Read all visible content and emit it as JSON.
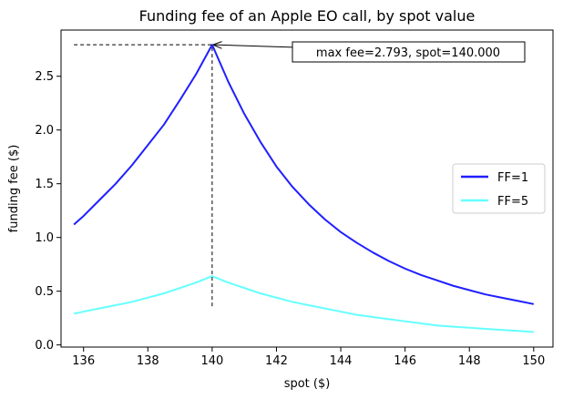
{
  "chart_data": {
    "type": "line",
    "title": "Funding fee of an Apple EO call, by spot value",
    "xlabel": "spot ($)",
    "ylabel": "funding fee ($)",
    "xlim": [
      135.3,
      150.6
    ],
    "ylim": [
      -0.02,
      2.93
    ],
    "xticks": [
      136,
      138,
      140,
      142,
      144,
      146,
      148,
      150
    ],
    "yticks": [
      0.0,
      0.5,
      1.0,
      1.5,
      2.0,
      2.5
    ],
    "xtick_labels": [
      "136",
      "138",
      "140",
      "142",
      "144",
      "146",
      "148",
      "150"
    ],
    "ytick_labels": [
      "0.0",
      "0.5",
      "1.0",
      "1.5",
      "2.0",
      "2.5"
    ],
    "grid": false,
    "legend_position": "center-right",
    "series": [
      {
        "name": "FF=1",
        "color": "#1f1fff",
        "x": [
          135.7,
          136.0,
          136.5,
          137.0,
          137.5,
          138.0,
          138.5,
          139.0,
          139.5,
          140.0,
          140.5,
          141.0,
          141.5,
          142.0,
          142.5,
          143.0,
          143.5,
          144.0,
          144.5,
          145.0,
          145.5,
          146.0,
          146.5,
          147.0,
          147.5,
          148.0,
          148.5,
          149.0,
          149.5,
          150.0
        ],
        "y": [
          1.12,
          1.2,
          1.35,
          1.5,
          1.67,
          1.86,
          2.05,
          2.28,
          2.52,
          2.793,
          2.45,
          2.15,
          1.89,
          1.66,
          1.47,
          1.31,
          1.17,
          1.05,
          0.95,
          0.86,
          0.78,
          0.71,
          0.65,
          0.6,
          0.55,
          0.51,
          0.47,
          0.44,
          0.41,
          0.38
        ]
      },
      {
        "name": "FF=5",
        "color": "#66ffff",
        "x": [
          135.7,
          136.0,
          136.5,
          137.0,
          137.5,
          138.0,
          138.5,
          139.0,
          139.5,
          140.0,
          140.5,
          141.0,
          141.5,
          142.0,
          142.5,
          143.0,
          143.5,
          144.0,
          144.5,
          145.0,
          145.5,
          146.0,
          146.5,
          147.0,
          147.5,
          148.0,
          148.5,
          149.0,
          149.5,
          150.0
        ],
        "y": [
          0.29,
          0.31,
          0.34,
          0.37,
          0.4,
          0.44,
          0.48,
          0.53,
          0.58,
          0.64,
          0.58,
          0.53,
          0.48,
          0.44,
          0.4,
          0.37,
          0.34,
          0.31,
          0.28,
          0.26,
          0.24,
          0.22,
          0.2,
          0.18,
          0.17,
          0.16,
          0.15,
          0.14,
          0.13,
          0.12
        ]
      }
    ],
    "reference_lines": [
      {
        "kind": "horizontal-dashed",
        "y": 2.793,
        "x_from": 135.7,
        "x_to": 140.0
      },
      {
        "kind": "vertical-dashed",
        "x": 140.0,
        "y_from": 0.36,
        "y_to": 2.793
      }
    ],
    "annotation": {
      "text": "max fee=2.793, spot=140.000",
      "arrow_target": {
        "x": 140.0,
        "y": 2.793
      },
      "arrow_from": {
        "x": 142.2,
        "y": 2.77
      }
    }
  }
}
